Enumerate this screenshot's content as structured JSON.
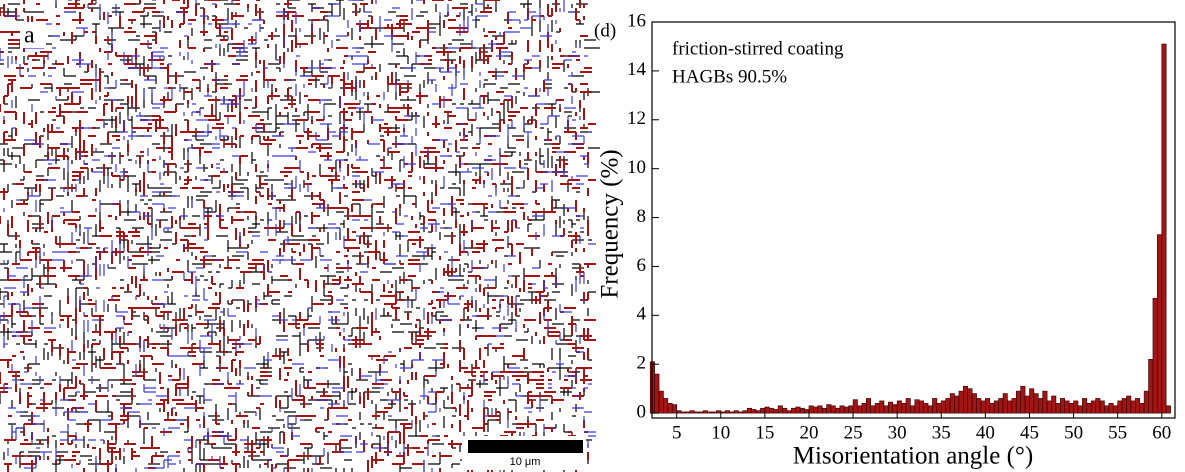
{
  "map": {
    "label": "a",
    "scale_bar": "10 μm"
  },
  "chart_data": {
    "type": "histogram",
    "panel_label": "(d)",
    "annotations": [
      "friction-stirred coating",
      "HAGBs 90.5%"
    ],
    "xlabel": "Misorientation angle (°)",
    "ylabel": "Frequency (%)",
    "color": "#a31515",
    "bins": [
      2,
      2.5,
      3,
      3.5,
      4,
      4.5,
      5,
      5.5,
      6,
      6.5,
      7,
      7.5,
      8,
      8.5,
      9,
      9.5,
      10,
      10.5,
      11,
      11.5,
      12,
      12.5,
      13,
      13.5,
      14,
      14.5,
      15,
      15.5,
      16,
      16.5,
      17,
      17.5,
      18,
      18.5,
      19,
      19.5,
      20,
      20.5,
      21,
      21.5,
      22,
      22.5,
      23,
      23.5,
      24,
      24.5,
      25,
      25.5,
      26,
      26.5,
      27,
      27.5,
      28,
      28.5,
      29,
      29.5,
      30,
      30.5,
      31,
      31.5,
      32,
      32.5,
      33,
      33.5,
      34,
      34.5,
      35,
      35.5,
      36,
      36.5,
      37,
      37.5,
      38,
      38.5,
      39,
      39.5,
      40,
      40.5,
      41,
      41.5,
      42,
      42.5,
      43,
      43.5,
      44,
      44.5,
      45,
      45.5,
      46,
      46.5,
      47,
      47.5,
      48,
      48.5,
      49,
      49.5,
      50,
      50.5,
      51,
      51.5,
      52,
      52.5,
      53,
      53.5,
      54,
      54.5,
      55,
      55.5,
      56,
      56.5,
      57,
      57.5,
      58,
      58.5,
      59,
      59.5,
      60,
      60.5,
      61
    ],
    "counts": [
      2.1,
      1.6,
      0.9,
      0.6,
      0.4,
      0.35,
      0.1,
      0.05,
      0.05,
      0.1,
      0.05,
      0.05,
      0.1,
      0.05,
      0.05,
      0.1,
      0.05,
      0.1,
      0.05,
      0.1,
      0.05,
      0.1,
      0.2,
      0.15,
      0.1,
      0.2,
      0.25,
      0.2,
      0.15,
      0.3,
      0.2,
      0.1,
      0.2,
      0.25,
      0.2,
      0.15,
      0.3,
      0.25,
      0.3,
      0.2,
      0.35,
      0.3,
      0.2,
      0.3,
      0.25,
      0.3,
      0.55,
      0.3,
      0.4,
      0.6,
      0.3,
      0.4,
      0.5,
      0.3,
      0.45,
      0.35,
      0.5,
      0.4,
      0.6,
      0.3,
      0.55,
      0.5,
      0.4,
      0.3,
      0.6,
      0.4,
      0.5,
      0.6,
      0.8,
      0.7,
      0.9,
      1.1,
      1.0,
      0.8,
      0.6,
      0.5,
      0.6,
      0.4,
      0.5,
      0.6,
      0.8,
      0.5,
      0.6,
      0.9,
      1.1,
      0.7,
      1.0,
      0.8,
      0.6,
      0.9,
      0.5,
      0.7,
      0.4,
      0.6,
      0.5,
      0.4,
      0.5,
      0.3,
      0.6,
      0.4,
      0.5,
      0.6,
      0.5,
      0.3,
      0.4,
      0.3,
      0.5,
      0.6,
      0.7,
      0.5,
      0.6,
      0.4,
      0.9,
      2.2,
      4.7,
      7.3,
      15.1,
      0.3
    ],
    "xlim": [
      2.2,
      61.5
    ],
    "xticks": [
      5,
      10,
      15,
      20,
      25,
      30,
      35,
      40,
      45,
      50,
      55,
      60
    ],
    "ylim": [
      -0.2,
      16
    ],
    "yticks": [
      0,
      2,
      4,
      6,
      8,
      10,
      12,
      14,
      16
    ]
  }
}
